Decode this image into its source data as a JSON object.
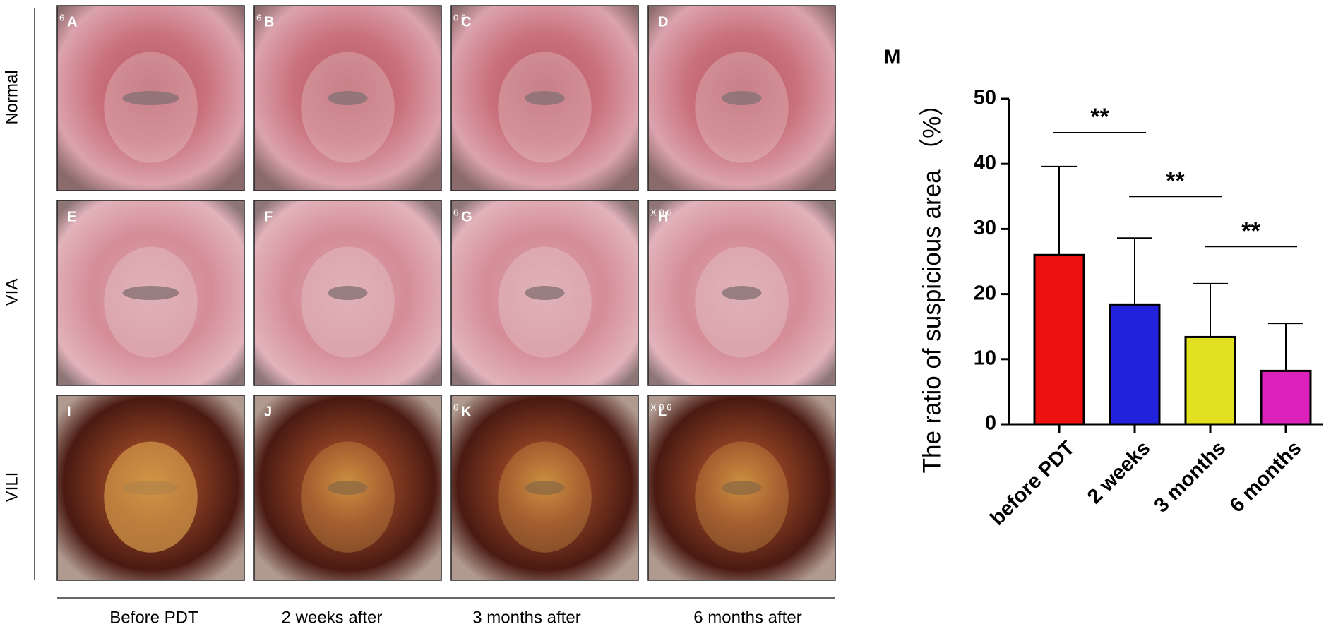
{
  "rows": [
    "Normal",
    "VIA",
    "VILI"
  ],
  "columns": [
    "Before PDT",
    "2 weeks after",
    "3 months after",
    "6 months after"
  ],
  "panels": [
    [
      {
        "letter": "A",
        "overlay": "6"
      },
      {
        "letter": "B",
        "overlay": "6"
      },
      {
        "letter": "C",
        "overlay": "0 6"
      },
      {
        "letter": "D"
      }
    ],
    [
      {
        "letter": "E"
      },
      {
        "letter": "F"
      },
      {
        "letter": "G",
        "overlay": "6"
      },
      {
        "letter": "H",
        "overlay": "X 0 6"
      }
    ],
    [
      {
        "letter": "I"
      },
      {
        "letter": "J"
      },
      {
        "letter": "K",
        "overlay": "6"
      },
      {
        "letter": "L",
        "overlay": "X 0 6"
      }
    ]
  ],
  "chart_data": {
    "type": "bar",
    "panel_label": "M",
    "y_label": "The ratio of suspicious area （%）",
    "categories": [
      "before PDT",
      "2 weeks",
      "3 months",
      "6 months"
    ],
    "values": [
      26,
      18.4,
      13.4,
      8.2
    ],
    "errors": [
      13.6,
      10.2,
      8.2,
      7.3
    ],
    "colors": [
      "#ee1111",
      "#2222dd",
      "#e0e020",
      "#dd22bb"
    ],
    "ylim": [
      0,
      50
    ],
    "yticks": [
      0,
      10,
      20,
      30,
      40,
      50
    ],
    "annotations": [
      {
        "text": "**",
        "value": 44.8
      },
      {
        "text": "**",
        "value": 35
      },
      {
        "text": "**",
        "value": 27.3
      }
    ]
  }
}
